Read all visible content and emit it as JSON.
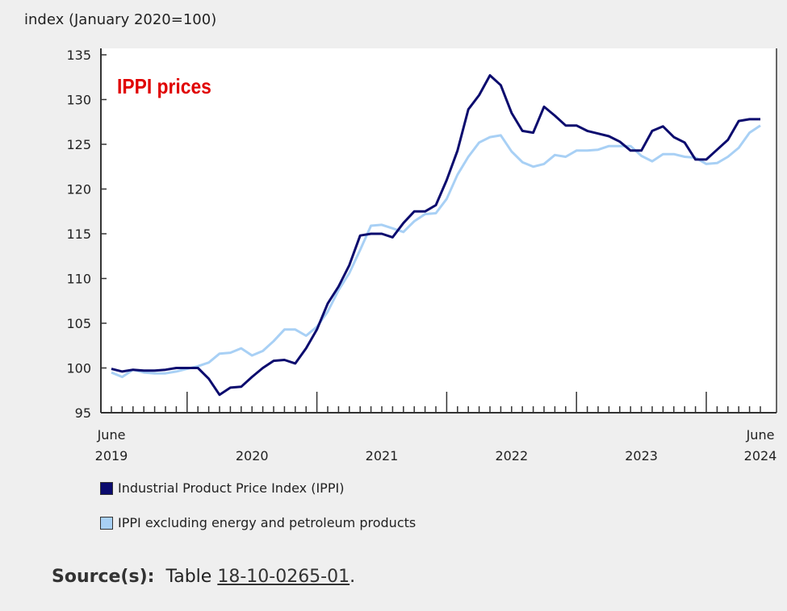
{
  "chart_data": {
    "type": "line",
    "title": "IPPI prices",
    "ylabel": "index (January 2020=100)",
    "xlabel": "",
    "ylim": [
      95,
      135
    ],
    "yticks": [
      95,
      100,
      105,
      110,
      115,
      120,
      125,
      130,
      135
    ],
    "x_start": "June 2019",
    "x_end": "June 2024",
    "xtick_labels": [
      {
        "label": "June",
        "sub": "2019"
      },
      {
        "label": "",
        "sub": "2020"
      },
      {
        "label": "",
        "sub": "2021"
      },
      {
        "label": "",
        "sub": "2022"
      },
      {
        "label": "",
        "sub": "2023"
      },
      {
        "label": "June",
        "sub": "2024"
      }
    ],
    "grid": false,
    "legend_position": "bottom",
    "series": [
      {
        "name": "Industrial Product Price Index (IPPI)",
        "color": "#0b0b6e",
        "values": [
          99.9,
          99.6,
          99.8,
          99.7,
          99.7,
          99.8,
          100.0,
          100.0,
          100.0,
          98.8,
          97.0,
          97.8,
          97.9,
          99.0,
          100.0,
          100.8,
          100.9,
          100.5,
          102.2,
          104.3,
          107.2,
          109.1,
          111.5,
          114.8,
          115.0,
          115.0,
          114.6,
          116.2,
          117.5,
          117.5,
          118.2,
          121.0,
          124.3,
          128.9,
          130.5,
          132.7,
          131.6,
          128.5,
          126.5,
          126.3,
          129.2,
          128.2,
          127.1,
          127.1,
          126.5,
          126.2,
          125.9,
          125.3,
          124.3,
          124.3,
          126.5,
          127.0,
          125.8,
          125.2,
          123.3,
          123.3,
          124.4,
          125.5,
          127.6,
          127.8,
          127.8
        ]
      },
      {
        "name": "IPPI excluding energy and petroleum products",
        "color": "#a8d0f5",
        "values": [
          99.5,
          99.0,
          99.8,
          99.5,
          99.4,
          99.4,
          99.6,
          99.9,
          100.2,
          100.6,
          101.6,
          101.7,
          102.2,
          101.4,
          101.9,
          103.0,
          104.3,
          104.3,
          103.6,
          104.6,
          106.3,
          108.7,
          110.6,
          113.2,
          115.9,
          116.0,
          115.6,
          115.2,
          116.4,
          117.2,
          117.3,
          118.9,
          121.6,
          123.6,
          125.2,
          125.8,
          126.0,
          124.2,
          123.0,
          122.5,
          122.8,
          123.8,
          123.6,
          124.3,
          124.3,
          124.4,
          124.8,
          124.8,
          124.8,
          123.7,
          123.1,
          123.9,
          123.9,
          123.6,
          123.5,
          122.8,
          122.9,
          123.6,
          124.6,
          126.3,
          127.1
        ]
      }
    ]
  },
  "source": {
    "label": "Source(s):",
    "text": "Table",
    "link": "18-10-0265-01",
    "end": "."
  }
}
